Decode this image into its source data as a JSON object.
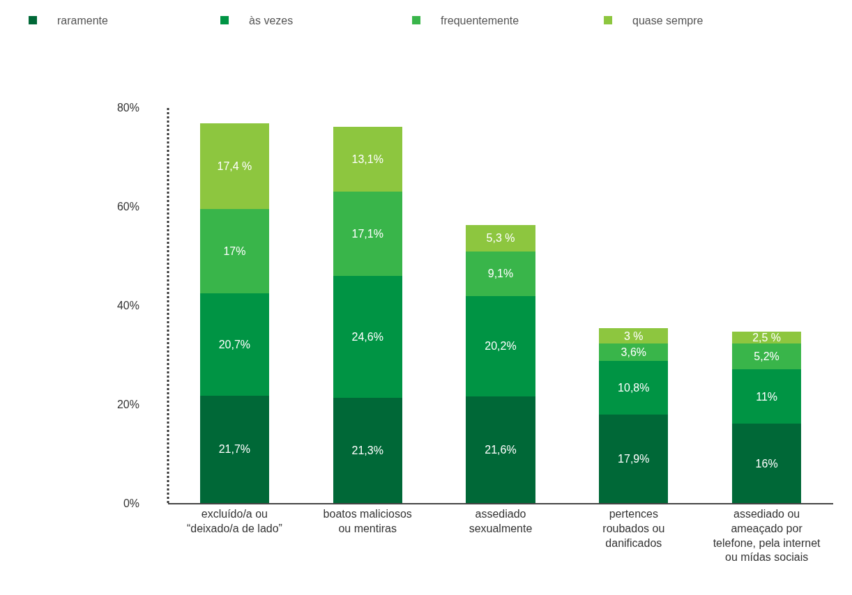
{
  "chart_data": {
    "type": "bar",
    "stacked": true,
    "categories": [
      "excluído/a ou\n“deixado/a de lado”",
      "boatos maliciosos\nou mentiras",
      "assediado\nsexualmente",
      "pertences\nroubados ou\ndanificados",
      "assediado ou\nameaçado por\ntelefone, pela internet\nou mídas sociais"
    ],
    "series": [
      {
        "name": "raramente",
        "color": "#006837",
        "values": [
          21.7,
          21.3,
          21.6,
          17.9,
          16
        ],
        "value_labels": [
          "21,7%",
          "21,3%",
          "21,6%",
          "17,9%",
          "16%"
        ]
      },
      {
        "name": "às vezes",
        "color": "#009444",
        "values": [
          20.7,
          24.6,
          20.2,
          10.8,
          11
        ],
        "value_labels": [
          "20,7%",
          "24,6%",
          "20,2%",
          "10,8%",
          "11%"
        ]
      },
      {
        "name": "frequentemente",
        "color": "#39b54a",
        "values": [
          17,
          17.1,
          9.1,
          3.6,
          5.2
        ],
        "value_labels": [
          "17%",
          "17,1%",
          "9,1%",
          "3,6%",
          "5,2%"
        ]
      },
      {
        "name": "quase sempre",
        "color": "#8dc63f",
        "values": [
          17.4,
          13.1,
          5.3,
          3,
          2.5
        ],
        "value_labels": [
          "17,4 %",
          "13,1%",
          "5,3 %",
          "3 %",
          "2,5 %"
        ]
      }
    ],
    "ylim": [
      0,
      80
    ],
    "yticks": [
      {
        "value": 0,
        "label": "0%"
      },
      {
        "value": 20,
        "label": "20%"
      },
      {
        "value": 40,
        "label": "40%"
      },
      {
        "value": 60,
        "label": "60%"
      },
      {
        "value": 80,
        "label": "80%"
      }
    ],
    "legend": "top left"
  }
}
